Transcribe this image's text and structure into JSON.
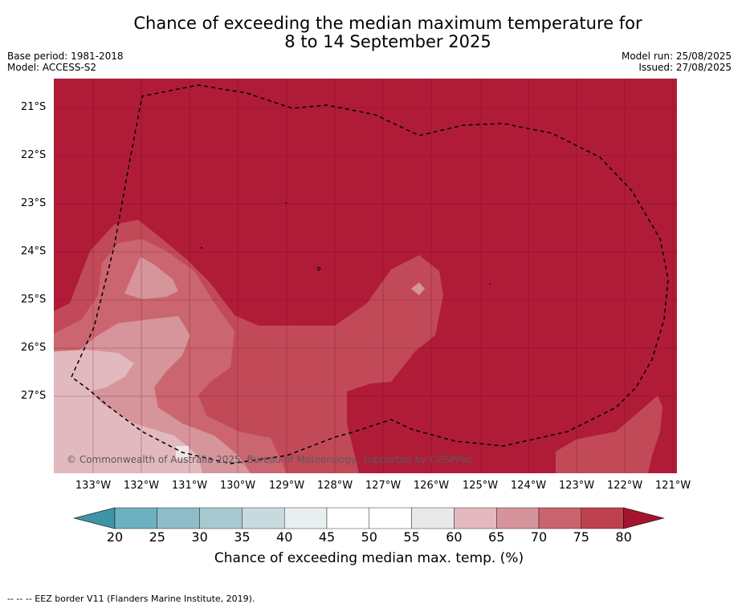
{
  "title_line1": "Chance of exceeding the median maximum temperature for",
  "title_line2": "8 to 14 September 2025",
  "base_period": "Base period: 1981-2018",
  "model": "Model: ACCESS-S2",
  "model_run": "Model run: 25/08/2025",
  "issued": "Issued: 27/08/2025",
  "copyright": "© Commonwealth of Australia 2025, Bureau of Meteorology, supported by COSPPac",
  "lat_labels": [
    "21°S",
    "22°S",
    "23°S",
    "24°S",
    "25°S",
    "26°S",
    "27°S"
  ],
  "lon_labels": [
    "133°W",
    "132°W",
    "131°W",
    "130°W",
    "129°W",
    "128°W",
    "127°W",
    "126°W",
    "125°W",
    "124°W",
    "123°W",
    "122°W",
    "121°W"
  ],
  "colorbar": {
    "ticks": [
      "20",
      "25",
      "30",
      "35",
      "40",
      "45",
      "50",
      "55",
      "60",
      "65",
      "70",
      "75",
      "80"
    ],
    "colors": [
      "#3e95a6",
      "#6db0bf",
      "#8ebcc7",
      "#a8c9cf",
      "#c9dade",
      "#e9eff1",
      "#ffffff",
      "#ffffff",
      "#e9e9e9",
      "#e3b8be",
      "#d5939b",
      "#c9646f",
      "#bd404f",
      "#a5142f"
    ],
    "label": "Chance of exceeding median max. temp. (%)"
  },
  "legend_text": "-- -- -- EEZ border V11 (Flanders Marine Institute, 2019).",
  "palette": {
    "c80": "#b01c38",
    "c75": "#c24a58",
    "c70": "#cb6670",
    "c65": "#d6949b",
    "c60": "#e2b9be"
  }
}
